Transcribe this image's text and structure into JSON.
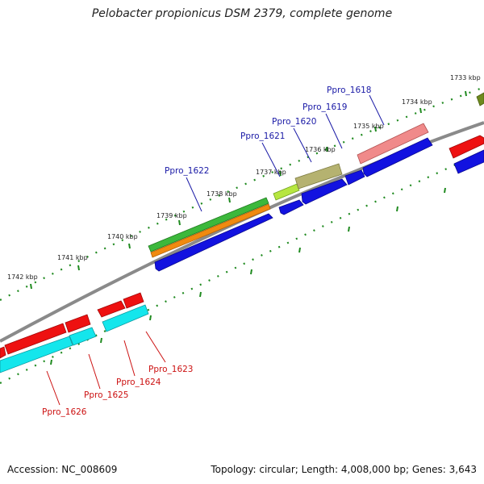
{
  "title": "Pelobacter propionicus DSM 2379, complete genome",
  "footer": {
    "accession": "Accession: NC_008609",
    "summary": "Topology: circular; Length: 4,008,000 bp; Genes: 3,643"
  },
  "colors": {
    "backbone": "#8a8a8a",
    "tick": "#1f8a1f",
    "forward_label": "#1a1aa6",
    "reverse_label": "#cc1111"
  },
  "tick_labels": [
    "1733 kbp",
    "1734 kbp",
    "1735 kbp",
    "1736 kbp",
    "1737 kbp",
    "1738 kbp",
    "1739 kbp",
    "1740 kbp",
    "1741 kbp",
    "1742 kbp"
  ],
  "gene_labels": {
    "forward": [
      "Ppro_1618",
      "Ppro_1619",
      "Ppro_1620",
      "Ppro_1621",
      "Ppro_1622"
    ],
    "reverse": [
      "Ppro_1623",
      "Ppro_1624",
      "Ppro_1625",
      "Ppro_1626"
    ]
  }
}
